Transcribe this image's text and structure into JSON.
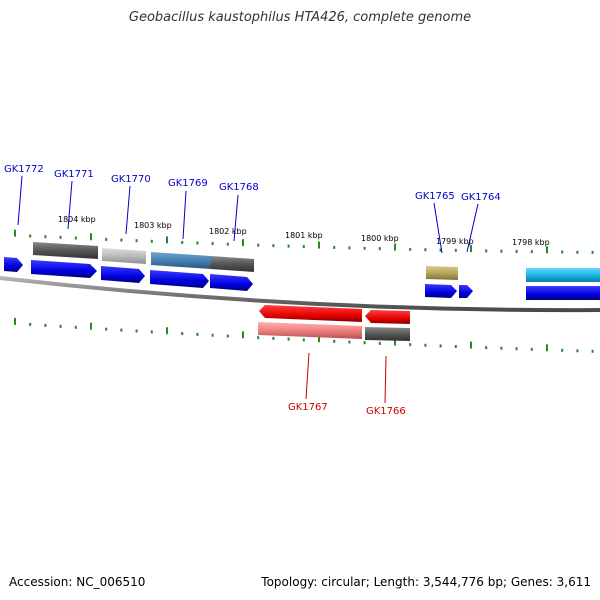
{
  "title": "Geobacillus kaustophilus HTA426, complete genome",
  "footer": {
    "accession_label": "Accession:",
    "accession": "NC_006510",
    "topology_label": "Topology:",
    "topology": "circular;",
    "length_label": "Length:",
    "length": "3,544,776 bp;",
    "genes_label": "Genes:",
    "genes": "3,611"
  },
  "scale_labels": [
    "1804 kbp",
    "1803 kbp",
    "1802 kbp",
    "1801 kbp",
    "1800 kbp",
    "1799 kbp",
    "1798 kbp"
  ],
  "genes_forward": [
    "GK1772",
    "GK1771",
    "GK1770",
    "GK1769",
    "GK1768",
    "GK1765",
    "GK1764"
  ],
  "genes_reverse": [
    "GK1767",
    "GK1766"
  ],
  "colors": {
    "label_forward": "#0000cc",
    "label_reverse": "#cc0000",
    "tick": "#228b22",
    "backbone": "#7f7f7f",
    "cds_blue": "#0000ee",
    "reverse_red": "#ee0000",
    "gray_dark": "#555555",
    "gray_light": "#bbbbbb",
    "steel": "#4682b4",
    "khaki": "#b5a85a",
    "cyan": "#1ab8e6",
    "salmon": "#f08080"
  }
}
